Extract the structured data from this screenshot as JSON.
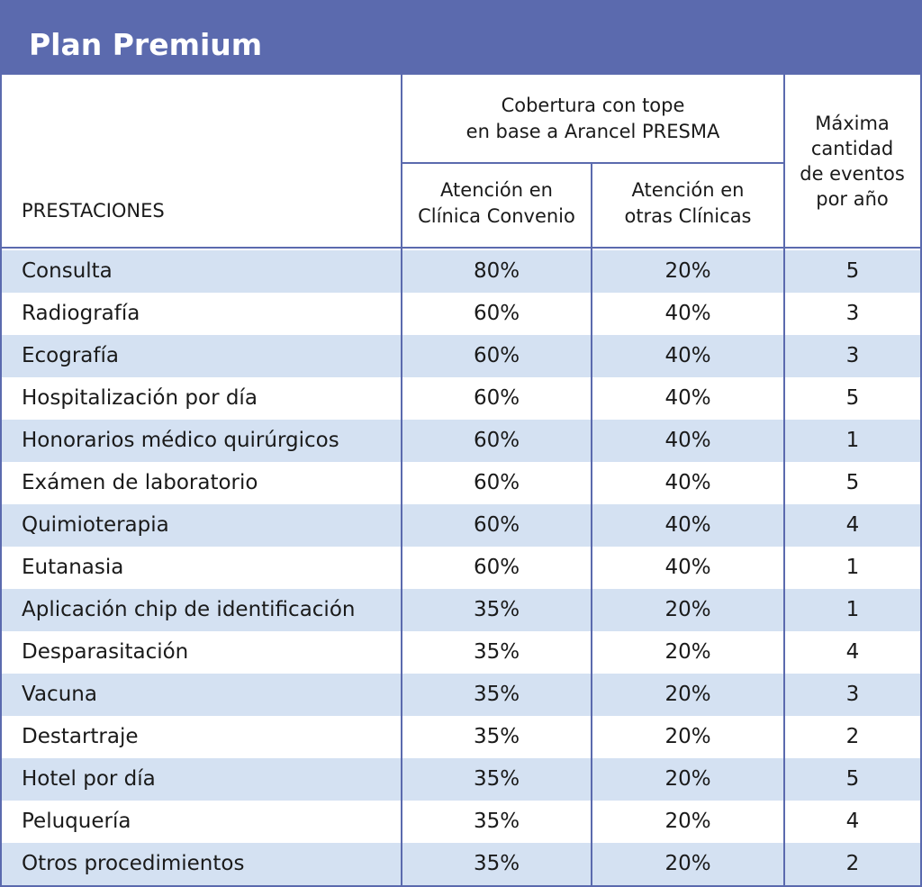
{
  "title": "Plan Premium",
  "headers": {
    "prestaciones": "PRESTACIONES",
    "coverage_group_line1": "Cobertura con tope",
    "coverage_group_line2": "en base a Arancel PRESMA",
    "convenio_line1": "Atención en",
    "convenio_line2": "Clínica Convenio",
    "otras_line1": "Atención en",
    "otras_line2": "otras Clínicas",
    "max_line1": "Máxima",
    "max_line2": "cantidad",
    "max_line3": "de eventos",
    "max_line4": "por año"
  },
  "rows": [
    {
      "name": "Consulta",
      "convenio": "80%",
      "otras": "20%",
      "max": "5"
    },
    {
      "name": "Radiografía",
      "convenio": "60%",
      "otras": "40%",
      "max": "3"
    },
    {
      "name": "Ecografía",
      "convenio": "60%",
      "otras": "40%",
      "max": "3"
    },
    {
      "name": "Hospitalización por día",
      "convenio": "60%",
      "otras": "40%",
      "max": "5"
    },
    {
      "name": "Honorarios médico quirúrgicos",
      "convenio": "60%",
      "otras": "40%",
      "max": "1"
    },
    {
      "name": "Exámen de laboratorio",
      "convenio": "60%",
      "otras": "40%",
      "max": "5"
    },
    {
      "name": "Quimioterapia",
      "convenio": "60%",
      "otras": "40%",
      "max": "4"
    },
    {
      "name": "Eutanasia",
      "convenio": "60%",
      "otras": "40%",
      "max": "1"
    },
    {
      "name": "Aplicación chip de identificación",
      "convenio": "35%",
      "otras": "20%",
      "max": "1"
    },
    {
      "name": "Desparasitación",
      "convenio": "35%",
      "otras": "20%",
      "max": "4"
    },
    {
      "name": "Vacuna",
      "convenio": "35%",
      "otras": "20%",
      "max": "3"
    },
    {
      "name": "Destartraje",
      "convenio": "35%",
      "otras": "20%",
      "max": "2"
    },
    {
      "name": "Hotel por día",
      "convenio": "35%",
      "otras": "20%",
      "max": "5"
    },
    {
      "name": "Peluquería",
      "convenio": "35%",
      "otras": "20%",
      "max": "4"
    },
    {
      "name": "Otros procedimientos",
      "convenio": "35%",
      "otras": "20%",
      "max": "2"
    }
  ],
  "colors": {
    "header_bar": "#5b6aae",
    "row_shade": "#d4e1f2",
    "title_text": "#ffffff"
  }
}
